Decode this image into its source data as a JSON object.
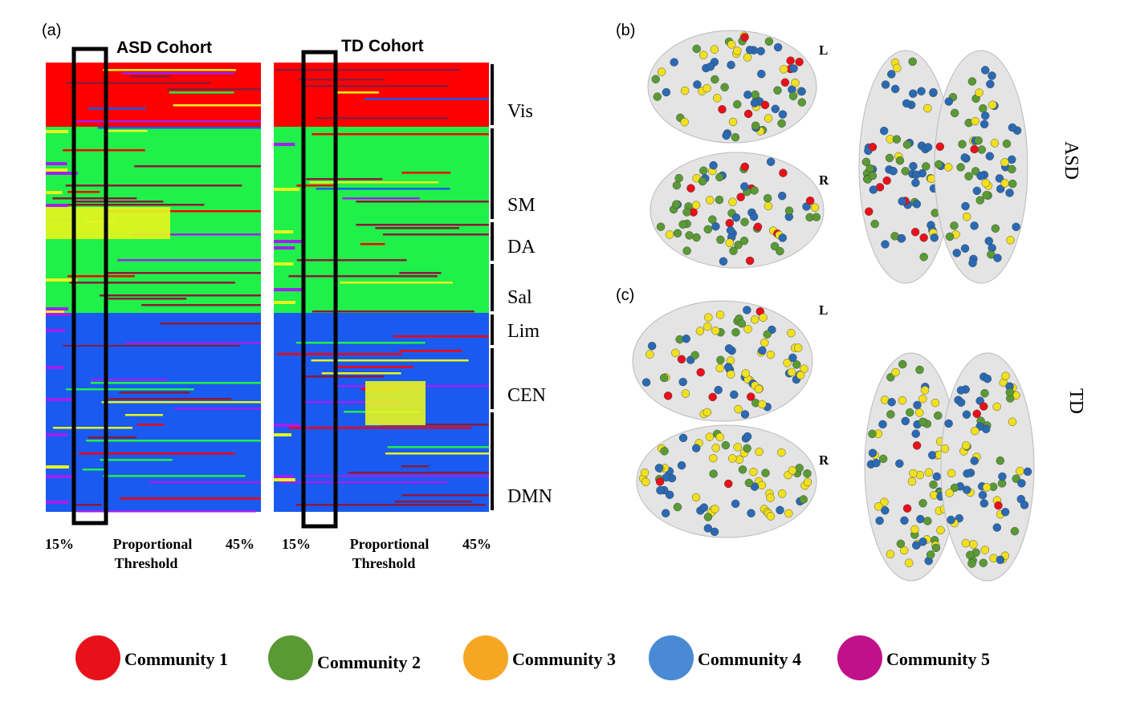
{
  "panel_a": {
    "label": "(a)",
    "cohorts": [
      {
        "title": "ASD Cohort",
        "x_start": "15%",
        "x_label": [
          "Proportional",
          "Threshold"
        ],
        "x_end": "45%"
      },
      {
        "title": "TD Cohort",
        "x_start": "15%",
        "x_label": [
          "Proportional",
          "Threshold"
        ],
        "x_end": "45%"
      }
    ],
    "networks": [
      "Vis",
      "SM",
      "DA",
      "Sal",
      "Lim",
      "CEN",
      "DMN"
    ]
  },
  "panel_b": {
    "label": "(b)",
    "views": [
      "L",
      "R"
    ],
    "group": "ASD"
  },
  "panel_c": {
    "label": "(c)",
    "views": [
      "L",
      "R"
    ],
    "group": "TD"
  },
  "legend": [
    "Community 1",
    "Community 2",
    "Community 3",
    "Community 4",
    "Community 5"
  ]
}
